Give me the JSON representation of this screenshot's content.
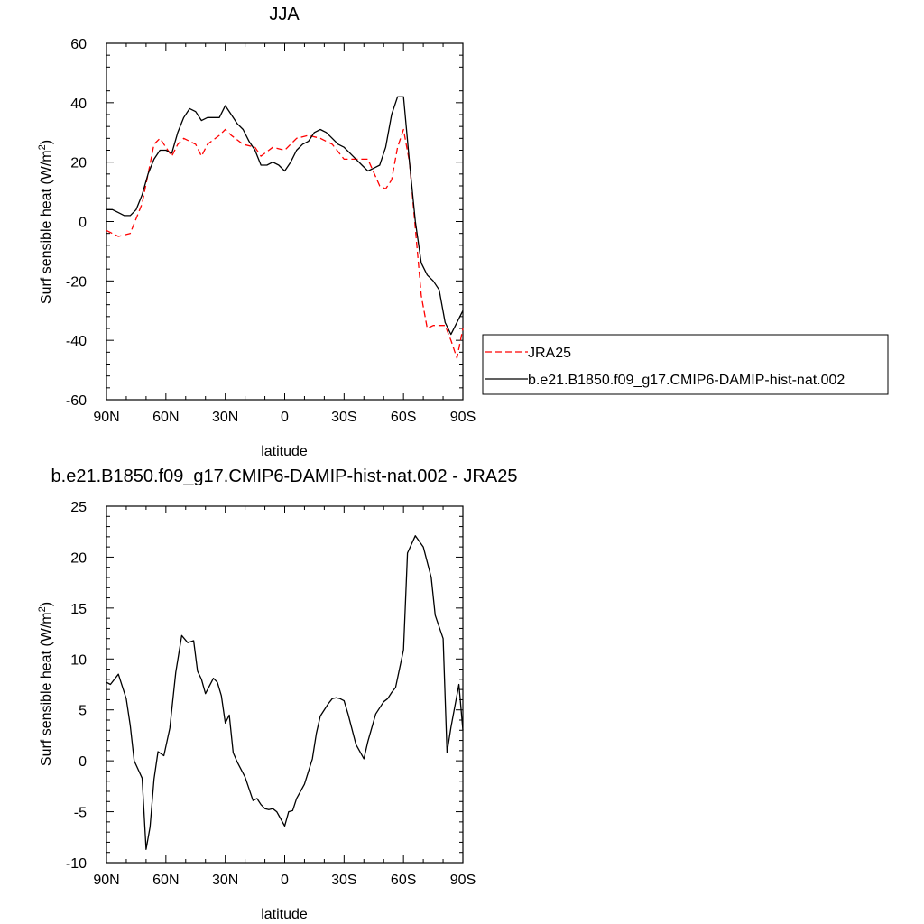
{
  "chart_data": [
    {
      "type": "line",
      "title": "JJA",
      "xlabel": "latitude",
      "ylabel_main": "Surf sensible heat (W/m",
      "ylabel_sup": "2",
      "ylabel_close": ")",
      "xlim": [
        90,
        -90
      ],
      "ylim": [
        -60,
        60
      ],
      "x_ticks": [
        90,
        60,
        30,
        0,
        -30,
        -60,
        -90
      ],
      "x_tick_labels": [
        "90N",
        "60N",
        "30N",
        "0",
        "30S",
        "60S",
        "90S"
      ],
      "y_ticks": [
        -60,
        -40,
        -20,
        0,
        20,
        40,
        60
      ],
      "y_tick_labels": [
        "-60",
        "-40",
        "-20",
        "0",
        "20",
        "40",
        "60"
      ],
      "legend": "outside-right",
      "series": [
        {
          "name": "JRA25",
          "color": "#ff0000",
          "style": "dashed",
          "x": [
            90,
            84,
            78,
            72,
            66,
            63,
            57,
            54,
            51,
            45,
            42,
            39,
            33,
            30,
            27,
            21,
            15,
            12,
            6,
            0,
            -6,
            -12,
            -18,
            -24,
            -30,
            -36,
            -42,
            -48,
            -51,
            -54,
            -57,
            -60,
            -63,
            -69,
            -72,
            -75,
            -81,
            -84,
            -87,
            -90
          ],
          "y": [
            -3,
            -5,
            -4,
            6,
            26,
            28,
            22,
            26,
            28,
            26,
            22,
            26,
            29,
            31,
            29,
            26,
            25,
            22,
            25,
            24,
            28,
            29,
            28,
            26,
            21,
            21,
            21,
            12,
            11,
            14,
            25,
            31,
            20,
            -25,
            -36,
            -35,
            -35,
            -40,
            -46,
            -36
          ]
        },
        {
          "name": "b.e21.B1850.f09_g17.CMIP6-DAMIP-hist-nat.002",
          "color": "#000000",
          "style": "solid",
          "x": [
            90,
            87,
            84,
            81,
            78,
            75,
            72,
            69,
            66,
            63,
            60,
            57,
            54,
            51,
            48,
            45,
            42,
            39,
            36,
            33,
            30,
            27,
            24,
            21,
            18,
            15,
            12,
            9,
            6,
            3,
            0,
            -3,
            -6,
            -9,
            -12,
            -15,
            -18,
            -21,
            -24,
            -27,
            -30,
            -33,
            -36,
            -39,
            -42,
            -45,
            -48,
            -51,
            -54,
            -57,
            -60,
            -63,
            -66,
            -69,
            -72,
            -75,
            -78,
            -81,
            -84,
            -87,
            -90
          ],
          "y": [
            4,
            4,
            3,
            2,
            2,
            4,
            9,
            16,
            21,
            24,
            24,
            23,
            30,
            35,
            38,
            37,
            34,
            35,
            35,
            35,
            39,
            36,
            33,
            31,
            27,
            24,
            19,
            19,
            20,
            19,
            17,
            20,
            24,
            26,
            27,
            30,
            31,
            30,
            28,
            26,
            25,
            23,
            21,
            19,
            17,
            18,
            19,
            25,
            36,
            42,
            42,
            20,
            0,
            -14,
            -18,
            -20,
            -23,
            -34,
            -38,
            -34,
            -30
          ]
        }
      ]
    },
    {
      "type": "line",
      "title": "b.e21.B1850.f09_g17.CMIP6-DAMIP-hist-nat.002 - JRA25",
      "xlabel": "latitude",
      "ylabel_main": "Surf sensible heat (W/m",
      "ylabel_sup": "2",
      "ylabel_close": ")",
      "xlim": [
        90,
        -90
      ],
      "ylim": [
        -10,
        25
      ],
      "x_ticks": [
        90,
        60,
        30,
        0,
        -30,
        -60,
        -90
      ],
      "x_tick_labels": [
        "90N",
        "60N",
        "30N",
        "0",
        "30S",
        "60S",
        "90S"
      ],
      "y_ticks": [
        -10,
        -5,
        0,
        5,
        10,
        15,
        20,
        25
      ],
      "y_tick_labels": [
        "-10",
        "-5",
        "0",
        "5",
        "10",
        "15",
        "20",
        "25"
      ],
      "series": [
        {
          "color": "#000000",
          "style": "solid",
          "x": [
            90,
            88,
            84,
            80,
            78,
            76,
            72,
            70,
            68,
            66,
            64,
            61,
            58,
            55,
            52,
            49,
            46,
            44,
            42,
            40,
            36,
            34,
            32,
            30,
            28,
            26,
            24,
            20,
            16,
            14,
            12,
            10,
            8,
            6,
            4,
            2,
            0,
            -2,
            -4,
            -6,
            -10,
            -14,
            -16,
            -18,
            -22,
            -24,
            -26,
            -28,
            -30,
            -32,
            -36,
            -40,
            -42,
            -46,
            -50,
            -52,
            -54,
            -56,
            -60,
            -62,
            -66,
            -70,
            -74,
            -76,
            -80,
            -82,
            -84,
            -88,
            -90
          ],
          "y": [
            7.7,
            7.5,
            8.5,
            6.1,
            3.5,
            0,
            -1.7,
            -8.7,
            -6.5,
            -1.8,
            0.9,
            0.5,
            3.2,
            8.7,
            12.3,
            11.6,
            11.8,
            8.8,
            8,
            6.6,
            8.1,
            7.7,
            6.4,
            3.7,
            4.5,
            0.8,
            -0.1,
            -1.6,
            -3.9,
            -3.7,
            -4.3,
            -4.7,
            -4.8,
            -4.7,
            -5,
            -5.7,
            -6.4,
            -5,
            -4.9,
            -3.7,
            -2.3,
            0.2,
            2.7,
            4.4,
            5.6,
            6.1,
            6.2,
            6.1,
            5.9,
            4.6,
            1.6,
            0.2,
            1.9,
            4.6,
            5.8,
            6.1,
            6.7,
            7.2,
            10.9,
            20.4,
            22.1,
            21,
            18,
            14.3,
            12,
            0.8,
            3.3,
            7.5,
            3
          ]
        }
      ]
    }
  ]
}
